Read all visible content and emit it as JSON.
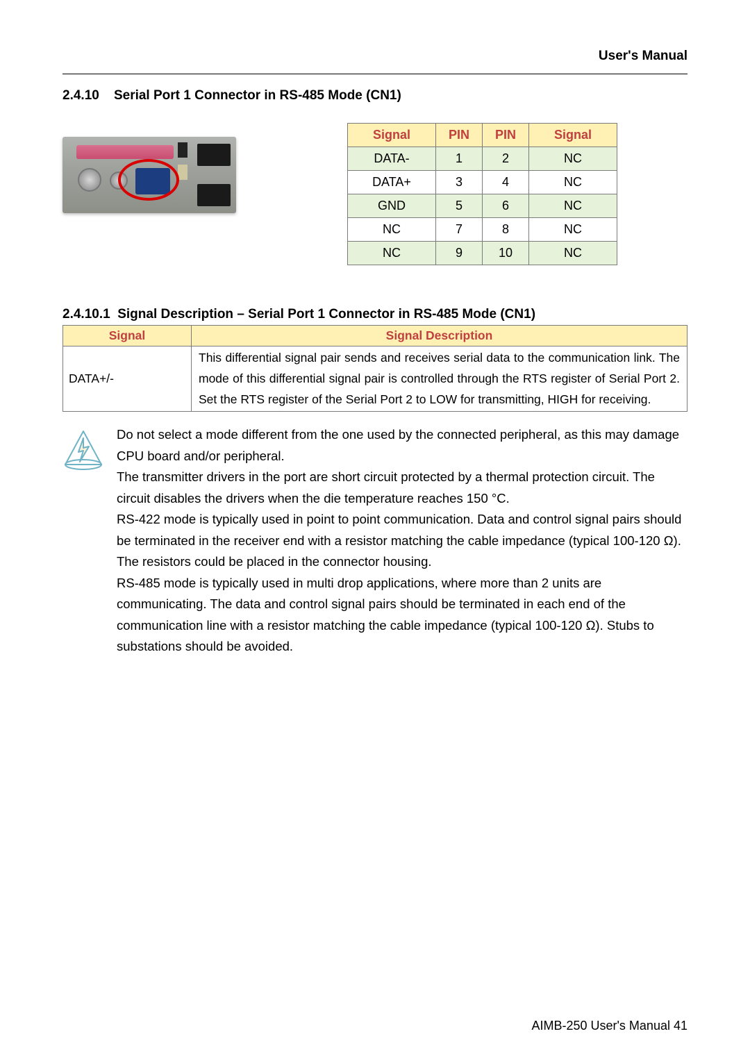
{
  "header": {
    "right_title": "User's  Manual"
  },
  "section": {
    "number": "2.4.10",
    "title": "Serial Port 1 Connector in RS-485 Mode (CN1)"
  },
  "pin_table": {
    "header_bg": "#fff0b3",
    "header_color": "#c04040",
    "shade_bg": "#e6f2d9",
    "border_color": "#7a7a7a",
    "headers": [
      "Signal",
      "PIN",
      "PIN",
      "Signal"
    ],
    "rows": [
      {
        "cells": [
          "DATA-",
          "1",
          "2",
          "NC"
        ],
        "shaded": true
      },
      {
        "cells": [
          "DATA+",
          "3",
          "4",
          "NC"
        ],
        "shaded": false
      },
      {
        "cells": [
          "GND",
          "5",
          "6",
          "NC"
        ],
        "shaded": true
      },
      {
        "cells": [
          "NC",
          "7",
          "8",
          "NC"
        ],
        "shaded": false
      },
      {
        "cells": [
          "NC",
          "9",
          "10",
          "NC"
        ],
        "shaded": true
      }
    ]
  },
  "subsection": {
    "number": "2.4.10.1",
    "title": "Signal Description – Serial Port 1 Connector in RS-485 Mode (CN1)"
  },
  "desc_table": {
    "headers": [
      "Signal",
      "Signal Description"
    ],
    "row": {
      "signal": "DATA+/-",
      "description": "This differential signal pair sends and receives serial data to the communication link.  The mode of this differential signal pair is controlled through the RTS register of Serial Port 2. Set the RTS register of the Serial Port 2 to LOW for transmitting, HIGH for receiving."
    }
  },
  "note": {
    "icon_fill": "#fdf1d6",
    "icon_stroke": "#6fb3c7",
    "paragraphs": [
      "Do not select a mode different from the one used by the connected peripheral, as this may damage CPU board and/or peripheral.",
      "The transmitter drivers in the port are short circuit protected by a thermal protection circuit. The circuit disables the drivers when the die temperature reaches 150 °C.",
      "RS-422 mode is typically used in point to point communication. Data and control signal pairs should be terminated in the receiver end with a resistor matching the cable impedance (typical 100-120 Ω). The resistors could be placed in the connector housing.",
      "RS-485 mode is typically used in multi drop applications, where more than 2 units are communicating. The data and control signal pairs should be terminated in each end of the communication line with a resistor matching the cable impedance (typical 100-120 Ω). Stubs to substations should be avoided."
    ]
  },
  "footer": {
    "text": "AIMB-250  User's  Manual  41"
  }
}
